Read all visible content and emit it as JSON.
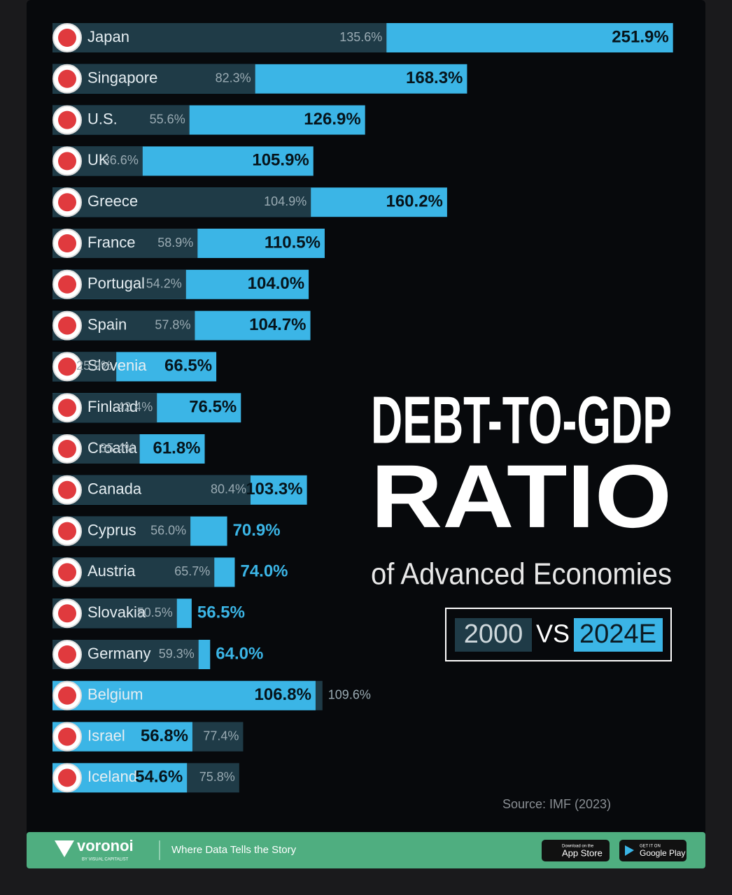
{
  "chart_data": {
    "type": "bar",
    "orientation": "horizontal",
    "title": "DEBT-TO-GDP",
    "title_line2": "RATIO",
    "subtitle": "of Advanced Economies",
    "legend_separator": "VS",
    "source": "Source: IMF (2023)",
    "categories": [
      "Japan",
      "Singapore",
      "U.S.",
      "UK",
      "Greece",
      "France",
      "Portugal",
      "Spain",
      "Slovenia",
      "Finland",
      "Croatia",
      "Canada",
      "Cyprus",
      "Austria",
      "Slovakia",
      "Germany",
      "Belgium",
      "Israel",
      "Iceland"
    ],
    "series": [
      {
        "name": "2000",
        "color": "#1f3b47",
        "values": [
          135.6,
          82.3,
          55.6,
          36.6,
          104.9,
          58.9,
          54.2,
          57.8,
          25.9,
          42.4,
          35.4,
          80.4,
          56.0,
          65.7,
          50.5,
          59.3,
          109.6,
          77.4,
          75.8
        ],
        "value_labels": [
          "135.6%",
          "82.3%",
          "55.6%",
          "36.6%",
          "104.9%",
          "58.9%",
          "54.2%",
          "57.8%",
          "25.9%",
          "42.4%",
          "35.4%",
          "80.4%",
          "56.0%",
          "65.7%",
          "50.5%",
          "59.3%",
          "109.6%",
          "77.4%",
          "75.8%"
        ]
      },
      {
        "name": "2024E",
        "color": "#3bb5e6",
        "values": [
          251.9,
          168.3,
          126.9,
          105.9,
          160.2,
          110.5,
          104.0,
          104.7,
          66.5,
          76.5,
          61.8,
          103.3,
          70.9,
          74.0,
          56.5,
          64.0,
          106.8,
          56.8,
          54.6
        ],
        "value_labels": [
          "251.9%",
          "168.3%",
          "126.9%",
          "105.9%",
          "160.2%",
          "110.5%",
          "104.0%",
          "104.7%",
          "66.5%",
          "76.5%",
          "61.8%",
          "103.3%",
          "70.9%",
          "74.0%",
          "56.5%",
          "64.0%",
          "106.8%",
          "56.8%",
          "54.6%"
        ]
      }
    ]
  },
  "footer": {
    "brand": "voronoi",
    "brand_sub": "BY VISUAL CAPITALIST",
    "tagline": "Where Data Tells the Story",
    "app_store_small": "Download on the",
    "app_store": "App Store",
    "google_play_small": "GET IT ON",
    "google_play": "Google Play"
  }
}
